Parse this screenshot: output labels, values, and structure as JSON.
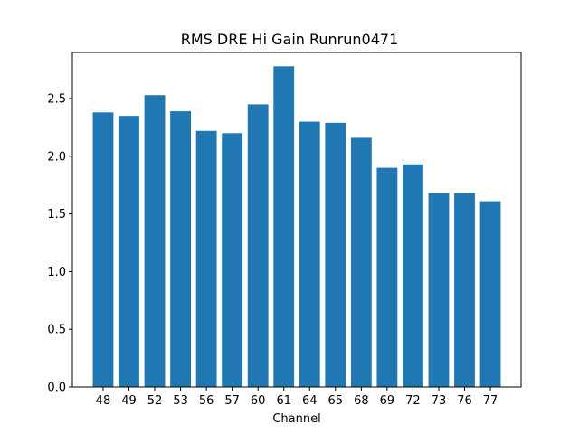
{
  "chart_data": {
    "type": "bar",
    "title": "RMS DRE Hi Gain Runrun0471",
    "xlabel": "Channel",
    "ylabel": "",
    "categories": [
      "48",
      "49",
      "52",
      "53",
      "56",
      "57",
      "60",
      "61",
      "64",
      "65",
      "68",
      "69",
      "72",
      "73",
      "76",
      "77"
    ],
    "values": [
      2.38,
      2.35,
      2.53,
      2.39,
      2.22,
      2.2,
      2.45,
      2.78,
      2.3,
      2.29,
      2.16,
      1.9,
      1.93,
      1.68,
      1.68,
      1.61
    ],
    "ylim": [
      0,
      2.9
    ],
    "yticks": [
      "0.0",
      "0.5",
      "1.0",
      "1.5",
      "2.0",
      "2.5"
    ],
    "grid": false,
    "bar_color": "#1f77b4"
  }
}
